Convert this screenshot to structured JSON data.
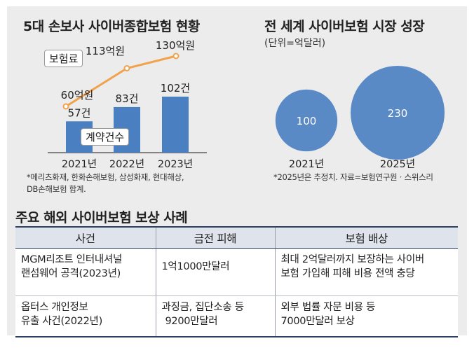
{
  "left_chart": {
    "title": "5대 손보사 사이버종합보험 현황",
    "premium_label": "보험료",
    "contracts_label": "계약건수",
    "footnote_line1": "*메리츠화재, 한화손해보험, 삼성화재, 현대해상,",
    "footnote_line2": "DB손해보험 합계."
  },
  "right_chart": {
    "title": "전 세계 사이버보험 시장 성장",
    "unit": "(단위=억달러)",
    "footnote": "*2025년은 추정치. 자료=보험연구원ㆍ스위스리"
  },
  "table": {
    "title": "주요 해외 사이버보험 보상 사례",
    "headers": [
      "사건",
      "금전 피해",
      "보험 배상"
    ],
    "rows": [
      {
        "case_line1": "MGM리조트 인터내셔널",
        "case_line2": "랜섬웨어 공격(2023년)",
        "damage_line1": "1억1000만달러",
        "damage_line2": "",
        "comp_line1": "최대 2억달러까지 보장하는 사이버",
        "comp_line2": "보험 가입해 피해 비용 전액 충당"
      },
      {
        "case_line1": "옵터스 개인정보",
        "case_line2": "유출 사건(2022년)",
        "damage_line1": "과징금, 집단소송 등",
        "damage_line2": "9200만달러",
        "comp_line1": "외부 법률 자문 비용 등",
        "comp_line2": "7000만달러 보상"
      }
    ]
  },
  "chart_data": [
    {
      "type": "bar",
      "categories": [
        "2021년",
        "2022년",
        "2023년"
      ],
      "series": [
        {
          "name": "계약건수",
          "values": [
            57,
            83,
            102
          ],
          "labels": [
            "57건",
            "83건",
            "102건"
          ],
          "color": "#4a7fc1"
        },
        {
          "name": "보험료",
          "values": [
            60,
            113,
            130
          ],
          "labels": [
            "60억원",
            "113억원",
            "130억원"
          ],
          "color": "#f0a24c",
          "kind": "line"
        }
      ]
    },
    {
      "type": "bubble",
      "categories": [
        "2021년",
        "2025년"
      ],
      "values": [
        100,
        230
      ],
      "labels": [
        "100",
        "230"
      ],
      "color": "#5a8ac6"
    }
  ]
}
